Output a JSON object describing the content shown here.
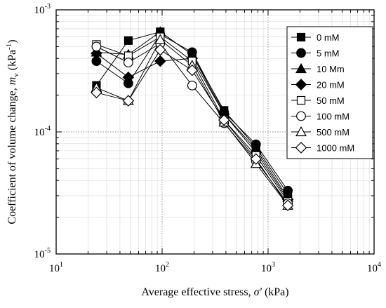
{
  "chart_data": {
    "type": "line",
    "xscale": "log",
    "yscale": "log",
    "xlim": [
      10,
      10000
    ],
    "ylim": [
      1e-05,
      0.001
    ],
    "grid": true,
    "legend_position": "right",
    "xlabel_parts": [
      "Average effective stress, ",
      "σ'",
      " (kPa)"
    ],
    "ylabel_parts": [
      "Coefficient of volume change, ",
      "m",
      "v",
      " (kPa",
      "-1",
      ")"
    ],
    "x_ticks": [
      {
        "value": 10,
        "base": "10",
        "exp": "1"
      },
      {
        "value": 100,
        "base": "10",
        "exp": "2"
      },
      {
        "value": 1000,
        "base": "10",
        "exp": "3"
      },
      {
        "value": 10000,
        "base": "10",
        "exp": "4"
      }
    ],
    "y_ticks": [
      {
        "value": 1e-05,
        "base": "10",
        "exp": "-5"
      },
      {
        "value": 0.0001,
        "base": "10",
        "exp": "-4"
      },
      {
        "value": 0.001,
        "base": "10",
        "exp": "-3"
      }
    ],
    "series": [
      {
        "name": "0 mM",
        "marker": "square",
        "filled": true,
        "points": [
          [
            24,
            0.00024
          ],
          [
            48,
            0.00056
          ],
          [
            96,
            0.00066
          ],
          [
            192,
            0.00043
          ],
          [
            384,
            0.00015
          ],
          [
            768,
            7.5e-05
          ],
          [
            1536,
            3.1e-05
          ]
        ]
      },
      {
        "name": "5 mM",
        "marker": "circle",
        "filled": true,
        "points": [
          [
            24,
            0.00038
          ],
          [
            48,
            0.00025
          ],
          [
            96,
            0.00063
          ],
          [
            192,
            0.00045
          ],
          [
            384,
            0.000145
          ],
          [
            768,
            7.9e-05
          ],
          [
            1536,
            3.3e-05
          ]
        ]
      },
      {
        "name": "10 Mm",
        "marker": "triangle",
        "filled": true,
        "points": [
          [
            24,
            0.00045
          ],
          [
            48,
            0.00043
          ],
          [
            96,
            0.00066
          ],
          [
            192,
            0.00043
          ],
          [
            384,
            0.00014
          ],
          [
            768,
            7.2e-05
          ],
          [
            1536,
            2.9e-05
          ]
        ]
      },
      {
        "name": "20 mM",
        "marker": "diamond",
        "filled": true,
        "points": [
          [
            24,
            0.00044
          ],
          [
            48,
            0.00028
          ],
          [
            96,
            0.00038
          ],
          [
            192,
            0.0004
          ],
          [
            384,
            0.00014
          ],
          [
            768,
            6.8e-05
          ],
          [
            1536,
            2.8e-05
          ]
        ]
      },
      {
        "name": "50 mM",
        "marker": "square",
        "filled": false,
        "points": [
          [
            24,
            0.00052
          ],
          [
            48,
            0.00042
          ],
          [
            96,
            0.0006
          ],
          [
            192,
            0.00038
          ],
          [
            384,
            0.000125
          ],
          [
            768,
            6.4e-05
          ],
          [
            1536,
            2.7e-05
          ]
        ]
      },
      {
        "name": "100 mM",
        "marker": "circle",
        "filled": false,
        "points": [
          [
            24,
            0.0005
          ],
          [
            48,
            0.00037
          ],
          [
            96,
            0.00053
          ],
          [
            192,
            0.00024
          ],
          [
            384,
            0.000118
          ],
          [
            768,
            5.8e-05
          ],
          [
            1536,
            2.6e-05
          ]
        ]
      },
      {
        "name": "500 mM",
        "marker": "triangle",
        "filled": false,
        "points": [
          [
            24,
            0.00023
          ],
          [
            48,
            0.00018
          ],
          [
            96,
            0.00057
          ],
          [
            192,
            0.00035
          ],
          [
            384,
            0.00012
          ],
          [
            768,
            5.5e-05
          ],
          [
            1536,
            2.5e-05
          ]
        ]
      },
      {
        "name": "1000 mM",
        "marker": "diamond",
        "filled": false,
        "points": [
          [
            24,
            0.00021
          ],
          [
            48,
            0.00018
          ],
          [
            96,
            0.00047
          ],
          [
            192,
            0.00032
          ],
          [
            384,
            0.000125
          ],
          [
            768,
            6e-05
          ],
          [
            1536,
            2.5e-05
          ]
        ]
      }
    ]
  }
}
